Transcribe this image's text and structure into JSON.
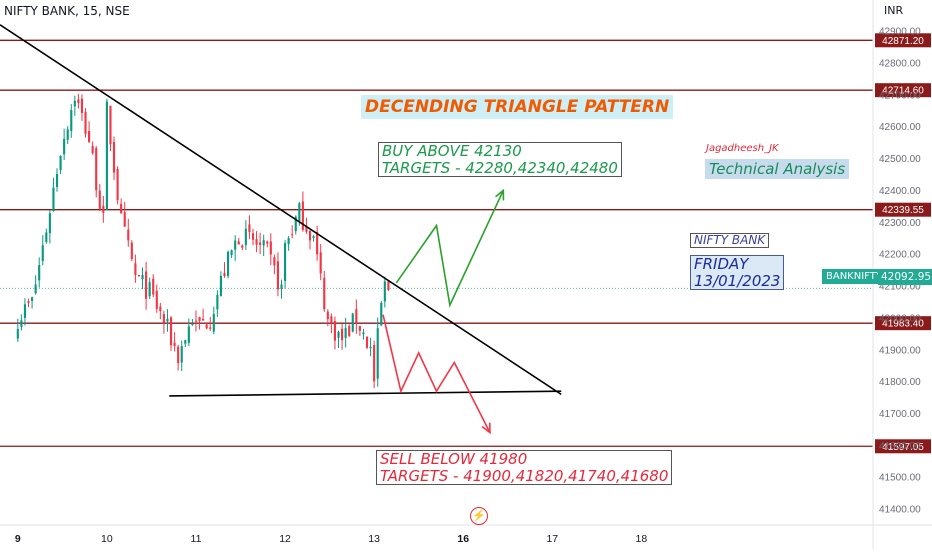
{
  "header": {
    "symbol": "NIFTY BANK, 15, NSE",
    "currency": "INR"
  },
  "colors": {
    "up": "#089981",
    "down": "#F23645",
    "level_line": "#8B1A1A",
    "trend_line": "#000000",
    "buy_arrow": "#2ca02c",
    "sell_arrow": "#F23645",
    "price_tag": "#22ab94",
    "title_text": "#f05a00",
    "title_bg": "#cfeff7"
  },
  "annotations": {
    "pattern_title": "DECENDING TRIANGLE PATTERN",
    "buy_line1": "BUY ABOVE 42130",
    "buy_line2": "TARGETS - 42280,42340,42480",
    "author": "Jagadheesh_JK",
    "technical": "Technical Analysis",
    "index_name": "NIFTY BANK",
    "day": "FRIDAY",
    "date": "13/01/2023",
    "sell_line1": "SELL BELOW 41980",
    "sell_line2": "TARGETS - 41900,41820,41740,41680"
  },
  "price_tag": {
    "label": "BANKNIFTY",
    "value": "42092.95"
  },
  "chart_data": {
    "type": "candlestick",
    "ylim": [
      41350,
      42960
    ],
    "xlim": [
      -0.2,
      9.6
    ],
    "y_ticks": [
      41400,
      41500,
      41600,
      41700,
      41800,
      41900,
      42000,
      42100,
      42200,
      42300,
      42400,
      42500,
      42600,
      42700,
      42800,
      42900
    ],
    "y_tick_labels": [
      "41400.00",
      "41500.00",
      "41600.00",
      "41700.00",
      "41800.00",
      "41900.00",
      "42000.00",
      "42100.00",
      "42200.00",
      "42300.00",
      "42400.00",
      "42500.00",
      "42600.00",
      "42700.00",
      "42800.00",
      "42900.00"
    ],
    "x_ticks": [
      {
        "pos": 0.0,
        "label": "9",
        "bold": true
      },
      {
        "pos": 1.0,
        "label": "10",
        "bold": false
      },
      {
        "pos": 2.0,
        "label": "11",
        "bold": false
      },
      {
        "pos": 3.0,
        "label": "12",
        "bold": false
      },
      {
        "pos": 4.0,
        "label": "13",
        "bold": false
      },
      {
        "pos": 5.0,
        "label": "16",
        "bold": true
      },
      {
        "pos": 6.0,
        "label": "17",
        "bold": false
      },
      {
        "pos": 7.0,
        "label": "18",
        "bold": false
      }
    ],
    "horizontal_levels": [
      42871.2,
      42714.6,
      42339.55,
      41983.4,
      41597.05
    ],
    "current_price": 42092.95,
    "candles_per_day": 25,
    "day_anchors": [
      [
        42000,
        42050,
        42280,
        42530,
        42700,
        42560,
        42300
      ],
      [
        42650,
        42300,
        42130,
        42080,
        41990,
        41880,
        42000
      ],
      [
        41970,
        42000,
        42150,
        42260,
        42240,
        42200,
        42090
      ],
      [
        42230,
        42330,
        42250,
        41990,
        41930,
        42000,
        41900
      ],
      [
        41800,
        41980,
        42100,
        42095
      ]
    ],
    "day_candle_counts": [
      25,
      25,
      25,
      25,
      5
    ],
    "trend_lines": [
      {
        "x": [
          -0.2,
          6.1
        ],
        "y": [
          42920,
          41760
        ]
      },
      {
        "x": [
          1.7,
          6.1
        ],
        "y": [
          41755,
          41770
        ]
      }
    ],
    "buy_path": {
      "x": [
        4.25,
        4.7,
        4.85,
        5.45
      ],
      "y": [
        42110,
        42290,
        42040,
        42400
      ]
    },
    "sell_path": {
      "x": [
        4.1,
        4.3,
        4.5,
        4.7,
        4.9,
        5.3
      ],
      "y": [
        42010,
        41770,
        41890,
        41770,
        41860,
        41640
      ]
    }
  }
}
